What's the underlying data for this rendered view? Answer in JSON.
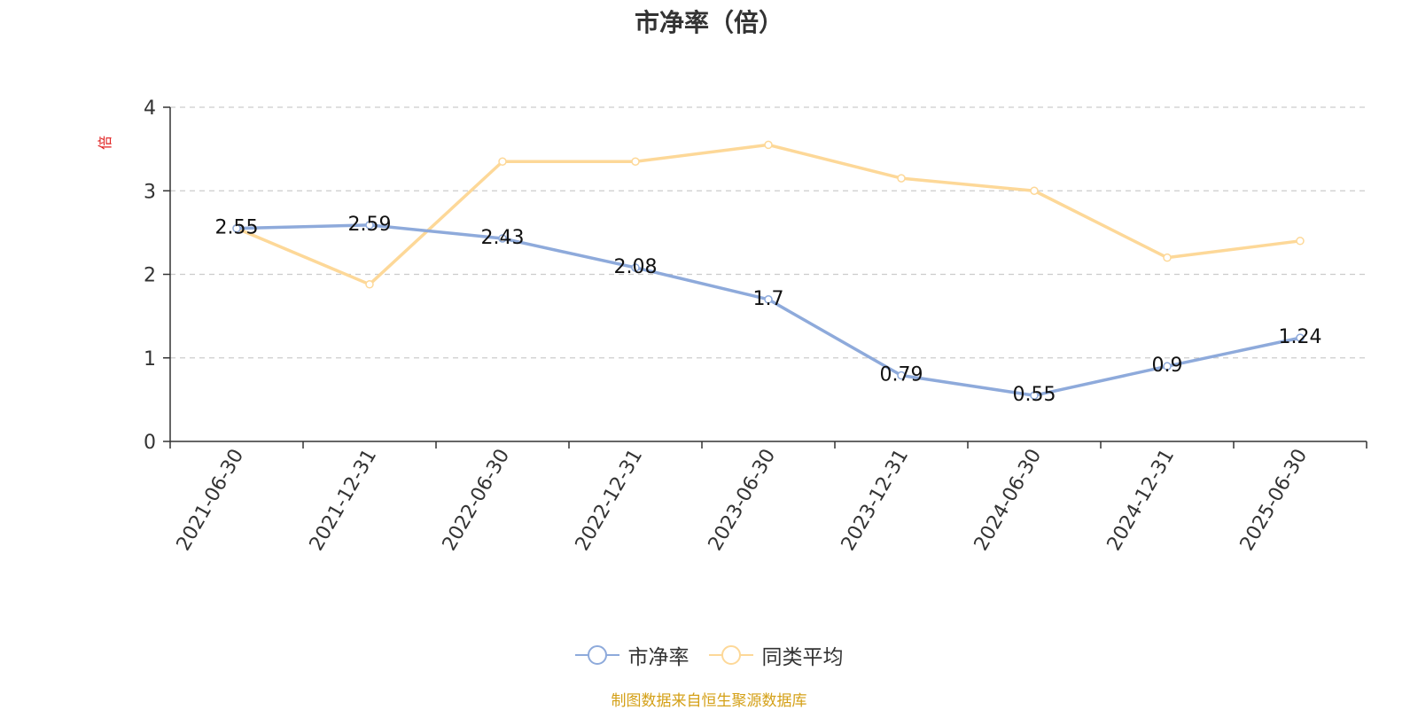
{
  "chart_data": {
    "type": "line",
    "title": "市净率（倍）",
    "ylabel": "倍",
    "xlabel": "",
    "categories": [
      "2021-06-30",
      "2021-12-31",
      "2022-06-30",
      "2022-12-31",
      "2023-06-30",
      "2023-12-31",
      "2024-06-30",
      "2024-12-31",
      "2025-06-30"
    ],
    "ylim": [
      0,
      4
    ],
    "yticks": [
      "0",
      "1",
      "2",
      "3",
      "4"
    ],
    "grid": true,
    "legend_position": "bottom",
    "series": [
      {
        "name": "市净率",
        "color": "#8eaadb",
        "values": [
          2.55,
          2.59,
          2.43,
          2.08,
          1.7,
          0.79,
          0.55,
          0.9,
          1.24
        ],
        "labels": [
          "2.55",
          "2.59",
          "2.43",
          "2.08",
          "1.7",
          "0.79",
          "0.55",
          "0.9",
          "1.24"
        ]
      },
      {
        "name": "同类平均",
        "color": "#fdd898",
        "values": [
          2.55,
          1.88,
          3.35,
          3.35,
          3.55,
          3.15,
          3.0,
          2.2,
          2.4
        ]
      }
    ],
    "ylabel_color": "#e02020"
  },
  "source_note": "制图数据来自恒生聚源数据库",
  "source_note_color": "#d4a017"
}
